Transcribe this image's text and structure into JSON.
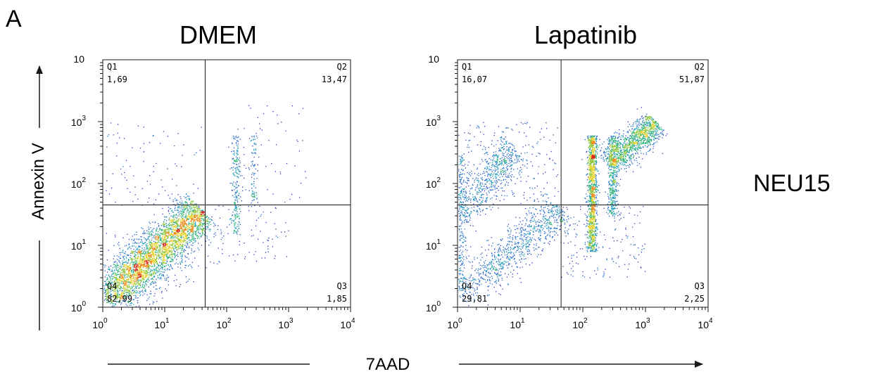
{
  "figure": {
    "panel_letter": "A",
    "row_label": "NEU15",
    "x_axis_label": "7AAD",
    "y_axis_label": "Annexin V"
  },
  "chart_data": [
    {
      "type": "scatter",
      "title": "DMEM",
      "xlabel": "7AAD",
      "ylabel": "Annexin V",
      "xscale": "log",
      "yscale": "log",
      "xlim": [
        1,
        10000
      ],
      "ylim": [
        1,
        10000
      ],
      "x_ticks": [
        "10^0",
        "10^1",
        "10^2",
        "10^3",
        "10^4"
      ],
      "y_ticks": [
        "10^0",
        "10^1",
        "10^2",
        "10^3"
      ],
      "y_top_tick_partial": "10",
      "gate": {
        "x": 45,
        "y": 45
      },
      "quadrants": [
        {
          "name": "Q1",
          "value": "1,69",
          "position": "top-left"
        },
        {
          "name": "Q2",
          "value": "13,47",
          "position": "top-right"
        },
        {
          "name": "Q3",
          "value": "1,85",
          "position": "bottom-right"
        },
        {
          "name": "Q4",
          "value": "82,99",
          "position": "bottom-left"
        }
      ],
      "populations": [
        {
          "pattern": "diagonal",
          "x0": 1.05,
          "x1": 40,
          "y0": 1.3,
          "y1": 38,
          "spread": 0.22,
          "weight": 0.78
        },
        {
          "pattern": "blob",
          "x": 4,
          "y": 4,
          "sx": 0.35,
          "sy": 0.25,
          "weight": 0.09
        },
        {
          "pattern": "column",
          "x": 140,
          "y0": 15,
          "y1": 600,
          "spread": 0.035,
          "weight": 0.055
        },
        {
          "pattern": "column",
          "x": 270,
          "y0": 40,
          "y1": 600,
          "spread": 0.035,
          "weight": 0.02
        },
        {
          "pattern": "uniform",
          "x0": 1,
          "x1": 40,
          "y0": 45,
          "y1": 1000,
          "weight": 0.02
        },
        {
          "pattern": "uniform",
          "x0": 45,
          "x1": 1000,
          "y0": 5,
          "y1": 45,
          "weight": 0.02
        },
        {
          "pattern": "uniform",
          "x0": 100,
          "x1": 2000,
          "y0": 50,
          "y1": 2000,
          "weight": 0.015
        }
      ],
      "n_events": 4200
    },
    {
      "type": "scatter",
      "title": "Lapatinib",
      "xlabel": "7AAD",
      "ylabel": "Annexin V",
      "xscale": "log",
      "yscale": "log",
      "xlim": [
        1,
        10000
      ],
      "ylim": [
        1,
        10000
      ],
      "x_ticks": [
        "10^0",
        "10^1",
        "10^2",
        "10^3",
        "10^4"
      ],
      "y_ticks": [
        "10^0",
        "10^1",
        "10^2",
        "10^3"
      ],
      "y_top_tick_partial": "10",
      "gate": {
        "x": 45,
        "y": 45
      },
      "quadrants": [
        {
          "name": "Q1",
          "value": "16,07",
          "position": "top-left"
        },
        {
          "name": "Q2",
          "value": "51,87",
          "position": "top-right"
        },
        {
          "name": "Q3",
          "value": "2,25",
          "position": "bottom-right"
        },
        {
          "name": "Q4",
          "value": "29,81",
          "position": "bottom-left"
        }
      ],
      "populations": [
        {
          "pattern": "column",
          "x": 140,
          "y0": 8,
          "y1": 600,
          "spread": 0.04,
          "weight": 0.24
        },
        {
          "pattern": "column",
          "x": 300,
          "y0": 30,
          "y1": 600,
          "spread": 0.04,
          "weight": 0.09
        },
        {
          "pattern": "diagonal",
          "x0": 250,
          "x1": 1500,
          "y0": 200,
          "y1": 1000,
          "spread": 0.15,
          "weight": 0.22
        },
        {
          "pattern": "diagonal",
          "x0": 1.05,
          "x1": 45,
          "y0": 1.5,
          "y1": 40,
          "spread": 0.2,
          "weight": 0.18
        },
        {
          "pattern": "diagonal",
          "x0": 1.05,
          "x1": 8,
          "y0": 30,
          "y1": 400,
          "spread": 0.2,
          "weight": 0.12
        },
        {
          "pattern": "column",
          "x": 1.1,
          "y0": 1.5,
          "y1": 300,
          "spread": 0.05,
          "weight": 0.06
        },
        {
          "pattern": "uniform",
          "x0": 1,
          "x1": 40,
          "y0": 45,
          "y1": 1000,
          "weight": 0.04
        },
        {
          "pattern": "uniform",
          "x0": 45,
          "x1": 1000,
          "y0": 3,
          "y1": 45,
          "weight": 0.03
        }
      ],
      "n_events": 5200
    }
  ]
}
